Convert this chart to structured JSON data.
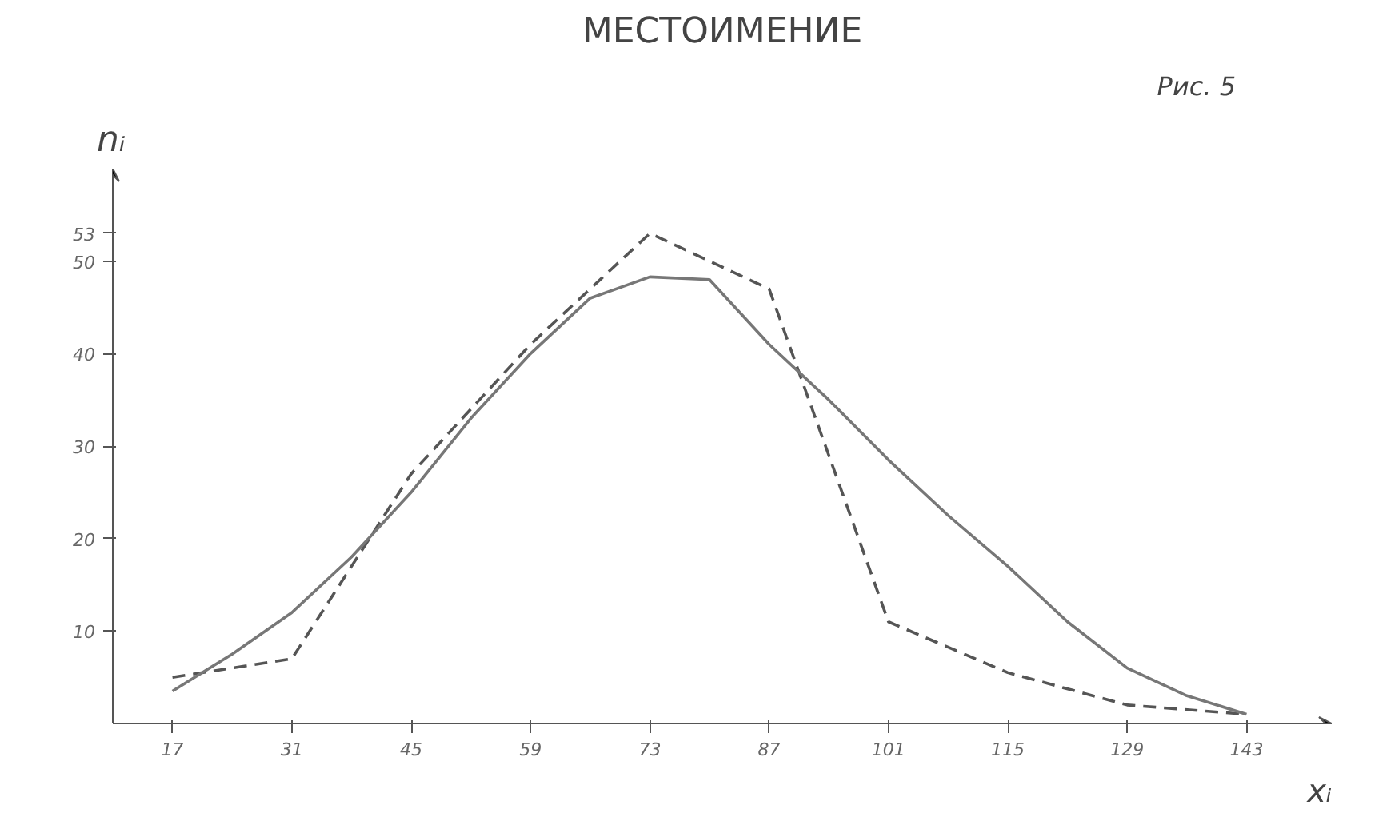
{
  "chart_data": {
    "type": "line",
    "title": "МЕСТОИМЕНИЕ",
    "xlabel": "xᵢ",
    "ylabel": "nᵢ",
    "annotations": [
      "Рис. 5"
    ],
    "x": [
      17,
      31,
      45,
      59,
      73,
      87,
      101,
      115,
      129,
      143
    ],
    "series": [
      {
        "color": "#555555",
        "line_style": "dashed",
        "values": [
          5,
          7,
          27,
          41,
          53,
          47,
          11,
          5.5,
          2,
          1
        ]
      },
      {
        "color": "#777777",
        "line_style": "solid",
        "x": [
          17,
          24,
          31,
          38,
          45,
          52,
          59,
          66,
          73,
          80,
          87,
          94,
          101,
          108,
          115,
          122,
          129,
          136,
          143
        ],
        "values": [
          3.5,
          7.5,
          12,
          18,
          25,
          33,
          40,
          46,
          48.3,
          48,
          41,
          35,
          28.5,
          22.5,
          17,
          11,
          6,
          3,
          1
        ]
      }
    ],
    "xlim": [
      10,
      153
    ],
    "ylim": [
      0,
      60
    ],
    "xticks": [
      17,
      31,
      45,
      59,
      73,
      87,
      101,
      115,
      129,
      143
    ],
    "yticks": [
      10,
      20,
      30,
      40,
      50,
      53
    ],
    "grid": false,
    "marker": "none"
  }
}
